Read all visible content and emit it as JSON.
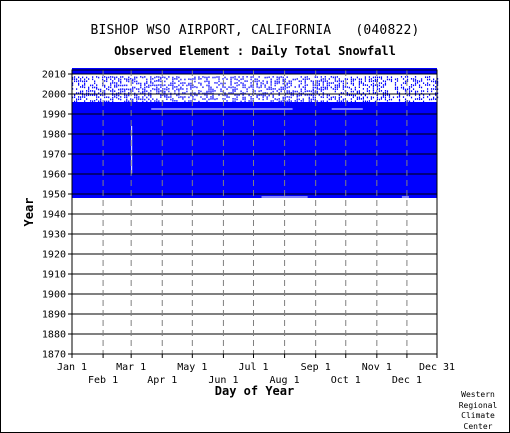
{
  "header": {
    "title": "BISHOP WSO AIRPORT, CALIFORNIA   (040822)",
    "subtitle": "Observed Element : Daily Total Snowfall"
  },
  "credit": [
    "Western",
    "Regional",
    "Climate",
    "Center"
  ],
  "colors": {
    "data": "#0000ff",
    "grid": "#808080",
    "axis": "#000000",
    "background": "#ffffff"
  },
  "chart_data": {
    "type": "heatmap",
    "title": "BISHOP WSO AIRPORT, CALIFORNIA   (040822)",
    "subtitle": "Observed Element : Daily Total Snowfall",
    "xlabel": "Day of Year",
    "ylabel": "Year",
    "xlim": [
      1,
      365
    ],
    "ylim": [
      1870,
      2012
    ],
    "x_ticks_top": [
      {
        "label": "Jan 1",
        "day": 1
      },
      {
        "label": "Mar 1",
        "day": 60
      },
      {
        "label": "May 1",
        "day": 121
      },
      {
        "label": "Jul 1",
        "day": 182
      },
      {
        "label": "Sep 1",
        "day": 244
      },
      {
        "label": "Nov 1",
        "day": 305
      },
      {
        "label": "Dec 31",
        "day": 365
      }
    ],
    "x_ticks_bottom": [
      {
        "label": "Feb 1",
        "day": 32
      },
      {
        "label": "Apr 1",
        "day": 91
      },
      {
        "label": "Jun 1",
        "day": 152
      },
      {
        "label": "Aug 1",
        "day": 213
      },
      {
        "label": "Oct 1",
        "day": 274
      },
      {
        "label": "Dec 1",
        "day": 335
      }
    ],
    "y_ticks": [
      1870,
      1880,
      1890,
      1900,
      1910,
      1920,
      1930,
      1940,
      1950,
      1960,
      1970,
      1980,
      1990,
      2000,
      2010
    ],
    "grid": true,
    "record_blocks": [
      {
        "start_year": 1948,
        "end_year": 1995,
        "start_day": 1,
        "end_day": 365,
        "coverage": "continuous"
      },
      {
        "start_year": 1996,
        "end_year": 2008,
        "start_day": 1,
        "end_day": 365,
        "coverage": "sparse"
      },
      {
        "start_year": 2010,
        "end_year": 2012,
        "start_day": 1,
        "end_day": 365,
        "coverage": "continuous"
      }
    ],
    "gaps": [
      {
        "year": 1992,
        "start_day": 80,
        "end_day": 220
      },
      {
        "year": 1992,
        "start_day": 260,
        "end_day": 290
      },
      {
        "year": 1948,
        "start_day": 190,
        "end_day": 235
      },
      {
        "year": 1948,
        "start_day": 330,
        "end_day": 336
      },
      {
        "start_year": 1948,
        "end_year": 1995,
        "start_day": 60,
        "end_day": 60
      }
    ]
  }
}
